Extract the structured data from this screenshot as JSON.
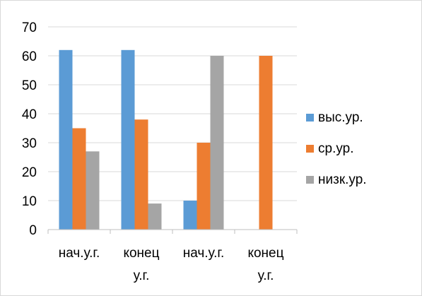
{
  "chart_data": {
    "type": "bar",
    "categories": [
      [
        "нач.у.г."
      ],
      [
        "конец",
        "у.г."
      ],
      [
        "нач.у.г."
      ],
      [
        "конец",
        "у.г."
      ]
    ],
    "series": [
      {
        "name": "выс.ур.",
        "color": "#5b9bd5",
        "values": [
          62,
          62,
          10,
          0
        ]
      },
      {
        "name": "ср.ур.",
        "color": "#ed7d31",
        "values": [
          35,
          38,
          30,
          60
        ]
      },
      {
        "name": "низк.ур.",
        "color": "#a5a5a5",
        "values": [
          27,
          9,
          60,
          0
        ]
      }
    ],
    "yticks": [
      0,
      10,
      20,
      30,
      40,
      50,
      60,
      70
    ],
    "ylim": [
      0,
      70
    ],
    "grid": true,
    "legend": "right",
    "gridline_color": "#d9d9d9"
  }
}
